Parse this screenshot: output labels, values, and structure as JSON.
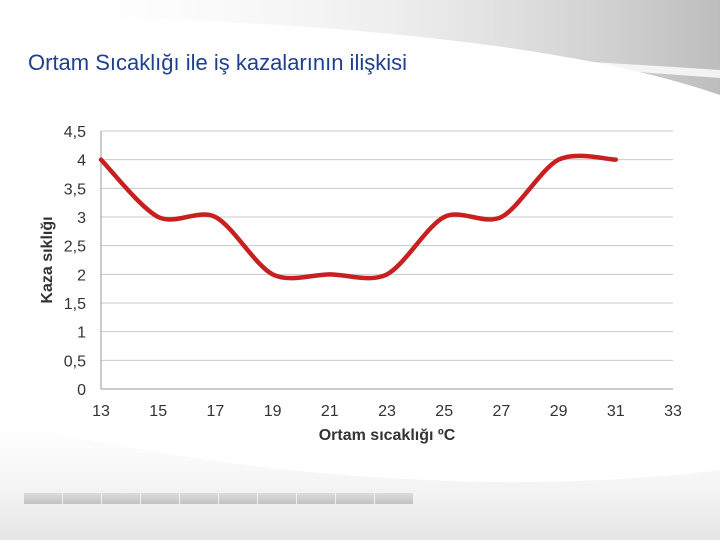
{
  "slide": {
    "title": "Ortam Sıcaklığı ile iş kazalarının ilişkisi"
  },
  "chart_data": {
    "type": "line",
    "title": "",
    "xlabel": "Ortam sıcaklığı ºC",
    "ylabel": "Kaza sıklığı",
    "x_ticks": [
      "13",
      "15",
      "17",
      "19",
      "21",
      "23",
      "25",
      "27",
      "29",
      "31",
      "33"
    ],
    "y_ticks": [
      "0",
      "0,5",
      "1",
      "1,5",
      "2",
      "2,5",
      "3",
      "3,5",
      "4",
      "4,5"
    ],
    "xlim": [
      13,
      33
    ],
    "ylim": [
      0,
      4.5
    ],
    "grid": true,
    "legend": "none",
    "series": [
      {
        "color": "#c82020",
        "x": [
          13,
          15,
          17,
          19,
          21,
          23,
          25,
          27,
          29,
          31
        ],
        "y": [
          4,
          3,
          3,
          2,
          2,
          2,
          3,
          3,
          4,
          4
        ]
      }
    ]
  }
}
